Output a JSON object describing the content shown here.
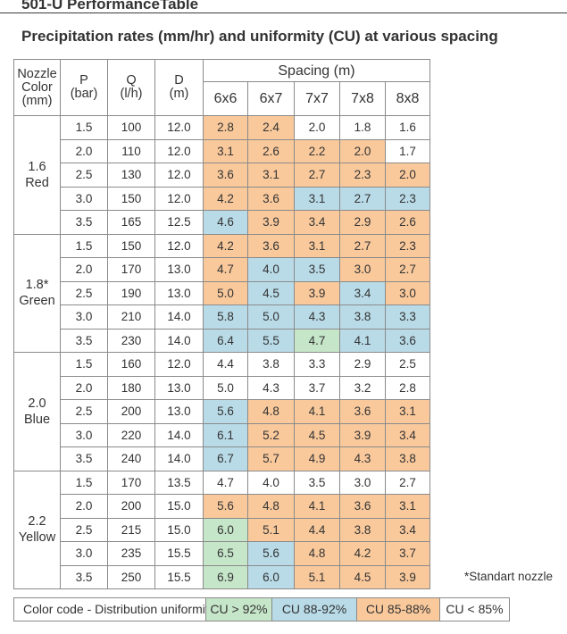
{
  "title": "501-U PerformanceTable",
  "subtitle": "Precipitation rates (mm/hr) and uniformity (CU) at various spacing",
  "headers": {
    "nozzle": "Nozzle Color (mm)",
    "p": "P",
    "p_unit": "(bar)",
    "q": "Q",
    "q_unit": "(l/h)",
    "d": "D",
    "d_unit": "(m)",
    "spacing": "Spacing (m)",
    "spacings": [
      "6x6",
      "6x7",
      "7x7",
      "7x8",
      "8x8"
    ]
  },
  "groups": [
    {
      "size": "1.6",
      "color": "Red",
      "rows": [
        {
          "p": "1.5",
          "q": "100",
          "d": "12.0",
          "values": [
            "2.8",
            "2.4",
            "2.0",
            "1.8",
            "1.6"
          ],
          "cu": [
            "85",
            "85",
            "0",
            "0",
            "0"
          ]
        },
        {
          "p": "2.0",
          "q": "110",
          "d": "12.0",
          "values": [
            "3.1",
            "2.6",
            "2.2",
            "2.0",
            "1.7"
          ],
          "cu": [
            "85",
            "85",
            "85",
            "85",
            "0"
          ]
        },
        {
          "p": "2.5",
          "q": "130",
          "d": "12.0",
          "values": [
            "3.6",
            "3.1",
            "2.7",
            "2.3",
            "2.0"
          ],
          "cu": [
            "85",
            "85",
            "85",
            "85",
            "85"
          ]
        },
        {
          "p": "3.0",
          "q": "150",
          "d": "12.0",
          "values": [
            "4.2",
            "3.6",
            "3.1",
            "2.7",
            "2.3"
          ],
          "cu": [
            "85",
            "85",
            "88",
            "88",
            "88"
          ]
        },
        {
          "p": "3.5",
          "q": "165",
          "d": "12.5",
          "values": [
            "4.6",
            "3.9",
            "3.4",
            "2.9",
            "2.6"
          ],
          "cu": [
            "88",
            "85",
            "85",
            "85",
            "85"
          ]
        }
      ]
    },
    {
      "size": "1.8*",
      "color": "Green",
      "rows": [
        {
          "p": "1.5",
          "q": "150",
          "d": "12.0",
          "values": [
            "4.2",
            "3.6",
            "3.1",
            "2.7",
            "2.3"
          ],
          "cu": [
            "85",
            "85",
            "85",
            "85",
            "85"
          ]
        },
        {
          "p": "2.0",
          "q": "170",
          "d": "13.0",
          "values": [
            "4.7",
            "4.0",
            "3.5",
            "3.0",
            "2.7"
          ],
          "cu": [
            "85",
            "88",
            "88",
            "85",
            "85"
          ]
        },
        {
          "p": "2.5",
          "q": "190",
          "d": "13.0",
          "values": [
            "5.0",
            "4.5",
            "3.9",
            "3.4",
            "3.0"
          ],
          "cu": [
            "85",
            "88",
            "85",
            "88",
            "85"
          ]
        },
        {
          "p": "3.0",
          "q": "210",
          "d": "14.0",
          "values": [
            "5.8",
            "5.0",
            "4.3",
            "3.8",
            "3.3"
          ],
          "cu": [
            "88",
            "88",
            "88",
            "88",
            "88"
          ]
        },
        {
          "p": "3.5",
          "q": "230",
          "d": "14.0",
          "values": [
            "6.4",
            "5.5",
            "4.7",
            "4.1",
            "3.6"
          ],
          "cu": [
            "88",
            "88",
            "92",
            "88",
            "88"
          ]
        }
      ]
    },
    {
      "size": "2.0",
      "color": "Blue",
      "rows": [
        {
          "p": "1.5",
          "q": "160",
          "d": "12.0",
          "values": [
            "4.4",
            "3.8",
            "3.3",
            "2.9",
            "2.5"
          ],
          "cu": [
            "0",
            "0",
            "0",
            "0",
            "0"
          ]
        },
        {
          "p": "2.0",
          "q": "180",
          "d": "13.0",
          "values": [
            "5.0",
            "4.3",
            "3.7",
            "3.2",
            "2.8"
          ],
          "cu": [
            "0",
            "0",
            "0",
            "0",
            "0"
          ]
        },
        {
          "p": "2.5",
          "q": "200",
          "d": "13.0",
          "values": [
            "5.6",
            "4.8",
            "4.1",
            "3.6",
            "3.1"
          ],
          "cu": [
            "88",
            "85",
            "85",
            "85",
            "85"
          ]
        },
        {
          "p": "3.0",
          "q": "220",
          "d": "14.0",
          "values": [
            "6.1",
            "5.2",
            "4.5",
            "3.9",
            "3.4"
          ],
          "cu": [
            "88",
            "85",
            "85",
            "85",
            "85"
          ]
        },
        {
          "p": "3.5",
          "q": "240",
          "d": "14.0",
          "values": [
            "6.7",
            "5.7",
            "4.9",
            "4.3",
            "3.8"
          ],
          "cu": [
            "88",
            "85",
            "85",
            "85",
            "85"
          ]
        }
      ]
    },
    {
      "size": "2.2",
      "color": "Yellow",
      "rows": [
        {
          "p": "1.5",
          "q": "170",
          "d": "13.5",
          "values": [
            "4.7",
            "4.0",
            "3.5",
            "3.0",
            "2.7"
          ],
          "cu": [
            "0",
            "0",
            "0",
            "0",
            "0"
          ]
        },
        {
          "p": "2.0",
          "q": "200",
          "d": "15.0",
          "values": [
            "5.6",
            "4.8",
            "4.1",
            "3.6",
            "3.1"
          ],
          "cu": [
            "85",
            "85",
            "85",
            "85",
            "85"
          ]
        },
        {
          "p": "2.5",
          "q": "215",
          "d": "15.0",
          "values": [
            "6.0",
            "5.1",
            "4.4",
            "3.8",
            "3.4"
          ],
          "cu": [
            "92",
            "85",
            "85",
            "85",
            "85"
          ]
        },
        {
          "p": "3.0",
          "q": "235",
          "d": "15.5",
          "values": [
            "6.5",
            "5.6",
            "4.8",
            "4.2",
            "3.7"
          ],
          "cu": [
            "92",
            "88",
            "85",
            "85",
            "85"
          ]
        },
        {
          "p": "3.5",
          "q": "250",
          "d": "15.5",
          "values": [
            "6.9",
            "6.0",
            "5.1",
            "4.5",
            "3.9"
          ],
          "cu": [
            "92",
            "88",
            "85",
            "85",
            "85"
          ]
        }
      ]
    }
  ],
  "footnote": "*Standart nozzle",
  "legend": {
    "label": "Color code - Distribution uniformity",
    "cu92": "CU > 92%",
    "cu88": "CU 88-92%",
    "cu85": "CU 85-88%",
    "cu0": "CU < 85%"
  },
  "colors": {
    "cu92": "#c6e6c9",
    "cu88": "#b9dbe8",
    "cu85": "#f9c99c",
    "cu0": "#ffffff"
  }
}
